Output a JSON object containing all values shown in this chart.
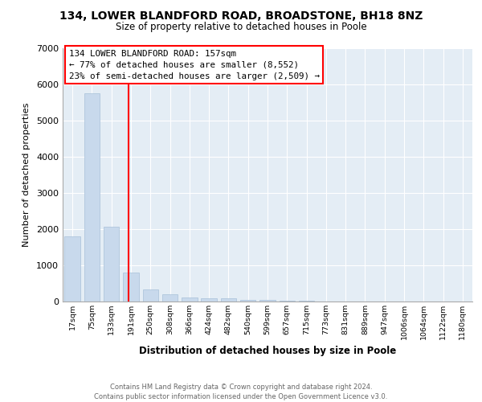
{
  "title": "134, LOWER BLANDFORD ROAD, BROADSTONE, BH18 8NZ",
  "subtitle": "Size of property relative to detached houses in Poole",
  "xlabel": "Distribution of detached houses by size in Poole",
  "ylabel": "Number of detached properties",
  "footer": "Contains HM Land Registry data © Crown copyright and database right 2024.\nContains public sector information licensed under the Open Government Licence v3.0.",
  "bar_color": "#c8d9ec",
  "bar_edgecolor": "#a8c0d8",
  "background_color": "#e4edf5",
  "grid_color": "#ffffff",
  "categories": [
    "17sqm",
    "75sqm",
    "133sqm",
    "191sqm",
    "250sqm",
    "308sqm",
    "366sqm",
    "424sqm",
    "482sqm",
    "540sqm",
    "599sqm",
    "657sqm",
    "715sqm",
    "773sqm",
    "831sqm",
    "889sqm",
    "947sqm",
    "1006sqm",
    "1064sqm",
    "1122sqm",
    "1180sqm"
  ],
  "values": [
    1800,
    5750,
    2060,
    810,
    330,
    200,
    120,
    100,
    80,
    50,
    50,
    30,
    30,
    0,
    0,
    0,
    0,
    0,
    0,
    0,
    0
  ],
  "red_line_x": 2.88,
  "annotation_text": "134 LOWER BLANDFORD ROAD: 157sqm\n← 77% of detached houses are smaller (8,552)\n23% of semi-detached houses are larger (2,509) →",
  "ylim": [
    0,
    7000
  ],
  "yticks": [
    0,
    1000,
    2000,
    3000,
    4000,
    5000,
    6000,
    7000
  ]
}
